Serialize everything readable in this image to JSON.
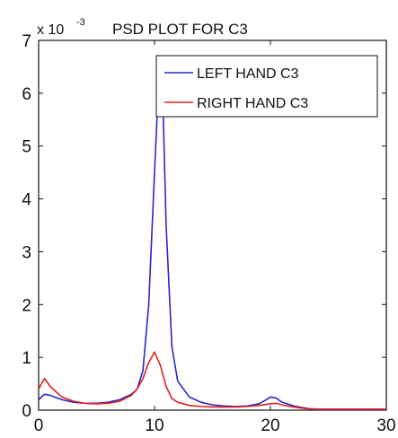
{
  "chart_data": {
    "type": "line",
    "title": "PSD PLOT FOR C3",
    "y_multiplier": {
      "base": "x 10",
      "exponent": "-3"
    },
    "xlabel": "",
    "ylabel": "",
    "xlim": [
      0,
      30
    ],
    "ylim": [
      0,
      7
    ],
    "x_ticks": [
      0,
      10,
      20,
      30
    ],
    "x_tick_labels": [
      "0",
      "10",
      "20",
      "30"
    ],
    "y_ticks": [
      0,
      1,
      2,
      3,
      4,
      5,
      6,
      7
    ],
    "y_tick_labels": [
      "0",
      "1",
      "2",
      "3",
      "4",
      "5",
      "6",
      "7"
    ],
    "grid": false,
    "legend_position": "top-right",
    "series": [
      {
        "name": "LEFT HAND C3",
        "color": "#2727c8",
        "x": [
          0,
          0.5,
          1,
          2,
          3,
          4,
          5,
          6,
          7,
          8,
          8.5,
          9,
          9.5,
          10,
          10.25,
          10.5,
          10.75,
          11,
          11.5,
          12,
          13,
          14,
          15,
          16,
          17,
          18,
          19,
          19.5,
          20,
          20.5,
          21,
          22,
          23,
          23.5,
          24,
          25,
          26,
          27,
          28,
          29,
          30
        ],
        "y": [
          0.2,
          0.3,
          0.28,
          0.2,
          0.15,
          0.13,
          0.13,
          0.15,
          0.2,
          0.3,
          0.4,
          0.75,
          2.0,
          4.5,
          5.7,
          6.0,
          5.6,
          3.5,
          1.2,
          0.55,
          0.25,
          0.15,
          0.1,
          0.08,
          0.07,
          0.08,
          0.12,
          0.18,
          0.25,
          0.23,
          0.15,
          0.08,
          0.04,
          0.02,
          0.01,
          0.01,
          0.01,
          0.01,
          0.01,
          0.01,
          0.01
        ]
      },
      {
        "name": "RIGHT HAND C3",
        "color": "#e02020",
        "x": [
          0,
          0.5,
          1,
          2,
          3,
          4,
          5,
          6,
          7,
          8,
          8.5,
          9,
          9.5,
          10,
          10.5,
          11,
          11.5,
          12,
          13,
          14,
          15,
          16,
          17,
          18,
          19,
          20,
          20.5,
          21,
          22,
          23,
          24,
          25,
          26,
          27,
          28,
          29,
          30
        ],
        "y": [
          0.4,
          0.6,
          0.45,
          0.25,
          0.17,
          0.13,
          0.12,
          0.13,
          0.17,
          0.28,
          0.4,
          0.6,
          0.9,
          1.1,
          0.85,
          0.45,
          0.22,
          0.15,
          0.09,
          0.07,
          0.06,
          0.06,
          0.06,
          0.07,
          0.09,
          0.12,
          0.13,
          0.1,
          0.06,
          0.03,
          0.02,
          0.02,
          0.02,
          0.02,
          0.02,
          0.02,
          0.02
        ]
      }
    ]
  }
}
